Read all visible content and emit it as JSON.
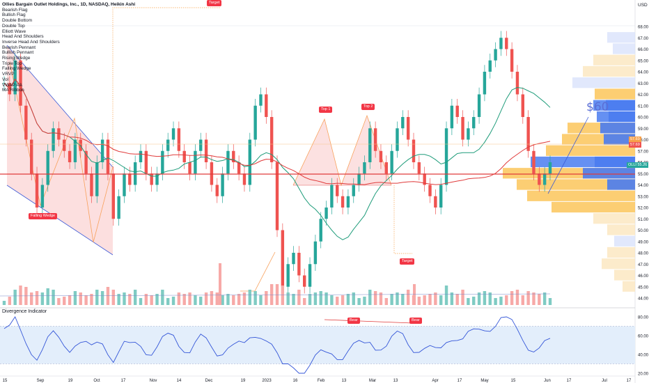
{
  "legend": {
    "title": "Ollies Bargain Outlet Holdings, Inc., 1D, NASDAQ, Heikin Ashi",
    "items": [
      "Bearish Flag",
      "Bullish Flag",
      "Double Bottom",
      "Double Top",
      "Elliott Wave",
      "Head And Shoulders",
      "Inverse Head And Shoulders",
      "Bearish Pennant",
      "Bullish Pennant",
      "Rising Wedge",
      "Triple Top",
      "Falling Wedge",
      "VRVP",
      "Vol",
      "VWAP AA",
      "MA Ribbon"
    ]
  },
  "currency": "USD",
  "subchart_title": "Divergence Indicator",
  "price_tags": {
    "vwap": "57.69",
    "ma": "57.69",
    "last_symbol": "OLLI",
    "last": "55.26"
  },
  "markers": {
    "falling_wedge": "Falling Wedge",
    "target_top": "Target",
    "target_bottom": "Target",
    "top1": "Top 1",
    "top2": "Top 2",
    "bear1": "Bear",
    "bear2": "Bear"
  },
  "annotation": "$60",
  "colors": {
    "up": "#26a69a",
    "down": "#ef5350",
    "vol_up": "#7fcbc3",
    "vol_down": "#f7a9a7",
    "ma_green": "#1e9c7a",
    "ma_red": "#e03a3a",
    "wedge": "#f8a15c",
    "wedge_fill": "#fbd4d4",
    "profile_orange": "#fbc65a",
    "profile_blue": "#4a7cf0",
    "osc_line": "#3355d8",
    "osc_bg": "#e3eefb"
  },
  "chart_data": {
    "type": "candlestick",
    "y_axis": {
      "min": 44,
      "max": 68,
      "ticks": [
        44,
        45,
        46,
        47,
        48,
        49,
        50,
        51,
        52,
        53,
        54,
        55,
        56,
        57,
        58,
        59,
        60,
        61,
        62,
        63,
        64,
        65,
        66,
        67,
        68
      ]
    },
    "x_ticks": [
      "15",
      "Sep",
      "19",
      "Oct",
      "17",
      "Nov",
      "14",
      "Dec",
      "19",
      "2023",
      "16",
      "Feb",
      "13",
      "Mar",
      "13",
      "Apr",
      "17",
      "May",
      "15",
      "Jun",
      "17",
      "Jul",
      "17"
    ],
    "close_series": [
      63,
      62,
      65,
      61,
      58,
      55,
      52,
      54,
      57,
      59,
      58,
      57,
      56,
      58,
      57,
      55,
      53,
      56,
      58,
      55,
      51,
      53,
      55,
      54,
      56,
      57,
      55,
      54,
      55,
      57,
      58,
      59,
      57,
      56,
      55,
      57,
      58,
      56,
      54,
      53,
      55,
      57,
      56,
      55,
      54,
      58,
      61,
      62,
      60,
      56,
      50,
      45,
      47,
      48,
      46,
      45,
      47,
      49,
      51,
      52,
      54,
      53,
      52,
      53,
      54,
      55,
      56,
      59,
      57,
      56,
      55,
      57,
      59,
      60,
      58,
      56,
      55,
      54,
      53,
      52,
      54,
      59,
      61,
      60,
      58,
      59,
      60,
      62,
      64,
      65,
      66,
      67,
      66,
      64,
      62,
      60,
      57,
      55,
      54,
      55,
      56
    ],
    "oscillator": {
      "ylim": [
        20,
        80
      ],
      "ticks": [
        20,
        40,
        60,
        80
      ]
    },
    "profile_levels": [
      45,
      46,
      47,
      48,
      49,
      50,
      51,
      52,
      53,
      54,
      55,
      56,
      57,
      58,
      59,
      60,
      61,
      62,
      63,
      64,
      65,
      66,
      67
    ]
  }
}
